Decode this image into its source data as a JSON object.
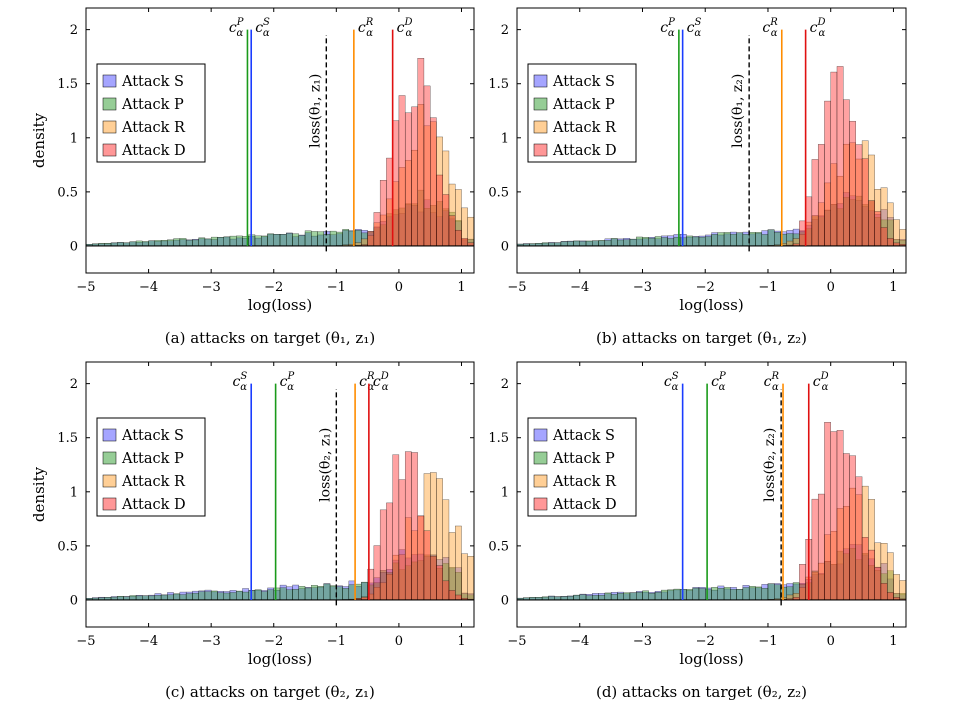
{
  "chart_data": [
    {
      "type": "bar",
      "caption": "(a) attacks on target (θ₁, z₁)",
      "xlabel": "log(loss)",
      "ylabel": "density",
      "xlim": [
        -5,
        1.2
      ],
      "ylim": [
        -0.25,
        2.2
      ],
      "xticks": [
        -5,
        -4,
        -3,
        -2,
        -1,
        0,
        1
      ],
      "yticks": [
        0,
        0.5,
        1,
        1.5,
        2
      ],
      "tick_labels_x": [
        "−5",
        "−4",
        "−3",
        "−2",
        "−1",
        "0",
        "1"
      ],
      "tick_labels_y": [
        "0",
        "0.5",
        "1",
        "1.5",
        "2"
      ],
      "legend": {
        "position": "top-left",
        "entries": [
          "Attack S",
          "Attack P",
          "Attack R",
          "Attack D"
        ]
      },
      "series": [
        {
          "name": "Attack S",
          "color": "#4c4cff",
          "peak": 0.38,
          "kind": "S"
        },
        {
          "name": "Attack P",
          "color": "#2e9b2e",
          "peak": 0.42,
          "kind": "P"
        },
        {
          "name": "Attack R",
          "color": "#ff9f2e",
          "peak": 1.15,
          "kind": "R"
        },
        {
          "name": "Attack D",
          "color": "#ff3030",
          "peak": 1.6,
          "kind": "D"
        }
      ],
      "thresholds": [
        {
          "label": "c",
          "sup": "P",
          "sub": "α",
          "x": -2.42,
          "color": "#1a9a1a",
          "label_side": "left"
        },
        {
          "label": "c",
          "sup": "S",
          "sub": "α",
          "x": -2.36,
          "color": "#1a3cff",
          "label_side": "right"
        },
        {
          "label": "c",
          "sup": "R",
          "sub": "α",
          "x": -0.72,
          "color": "#ff8c00",
          "label_side": "right"
        },
        {
          "label": "c",
          "sup": "D",
          "sub": "α",
          "x": -0.1,
          "color": "#e01010",
          "label_side": "right"
        }
      ],
      "target_loss": {
        "x": -1.16,
        "label": "loss(θ₁, z₁)"
      },
      "dist": {
        "centerD": 0.25,
        "centerR": 0.45,
        "tailSP": -2.2
      }
    },
    {
      "type": "bar",
      "caption": "(b) attacks on target (θ₁, z₂)",
      "xlabel": "log(loss)",
      "ylabel": "",
      "xlim": [
        -5,
        1.2
      ],
      "ylim": [
        -0.25,
        2.2
      ],
      "xticks": [
        -5,
        -4,
        -3,
        -2,
        -1,
        0,
        1
      ],
      "yticks": [
        0,
        0.5,
        1,
        1.5,
        2
      ],
      "tick_labels_x": [
        "−5",
        "−4",
        "−3",
        "−2",
        "−1",
        "0",
        "1"
      ],
      "tick_labels_y": [
        "0",
        "0.5",
        "1",
        "1.5",
        "2"
      ],
      "legend": {
        "position": "top-left",
        "entries": [
          "Attack S",
          "Attack P",
          "Attack R",
          "Attack D"
        ]
      },
      "series": [
        {
          "name": "Attack S",
          "color": "#4c4cff",
          "peak": 0.42,
          "kind": "S"
        },
        {
          "name": "Attack P",
          "color": "#2e9b2e",
          "peak": 0.4,
          "kind": "P"
        },
        {
          "name": "Attack R",
          "color": "#ff9f2e",
          "peak": 0.95,
          "kind": "R"
        },
        {
          "name": "Attack D",
          "color": "#ff3030",
          "peak": 1.42,
          "kind": "D"
        }
      ],
      "thresholds": [
        {
          "label": "c",
          "sup": "P",
          "sub": "α",
          "x": -2.42,
          "color": "#1a9a1a",
          "label_side": "left"
        },
        {
          "label": "c",
          "sup": "S",
          "sub": "α",
          "x": -2.36,
          "color": "#1a3cff",
          "label_side": "right"
        },
        {
          "label": "c",
          "sup": "R",
          "sub": "α",
          "x": -0.78,
          "color": "#ff8c00",
          "label_side": "left"
        },
        {
          "label": "c",
          "sup": "D",
          "sub": "α",
          "x": -0.4,
          "color": "#e01010",
          "label_side": "right"
        }
      ],
      "target_loss": {
        "x": -1.3,
        "label": "loss(θ₁, z₂)"
      },
      "dist": {
        "centerD": 0.15,
        "centerR": 0.4,
        "tailSP": -2.2
      }
    },
    {
      "type": "bar",
      "caption": "(c) attacks on target (θ₂, z₁)",
      "xlabel": "log(loss)",
      "ylabel": "density",
      "xlim": [
        -5,
        1.2
      ],
      "ylim": [
        -0.25,
        2.2
      ],
      "xticks": [
        -5,
        -4,
        -3,
        -2,
        -1,
        0,
        1
      ],
      "yticks": [
        0,
        0.5,
        1,
        1.5,
        2
      ],
      "tick_labels_x": [
        "−5",
        "−4",
        "−3",
        "−2",
        "−1",
        "0",
        "1"
      ],
      "tick_labels_y": [
        "0",
        "0.5",
        "1",
        "1.5",
        "2"
      ],
      "legend": {
        "position": "top-left",
        "entries": [
          "Attack S",
          "Attack P",
          "Attack R",
          "Attack D"
        ]
      },
      "series": [
        {
          "name": "Attack S",
          "color": "#4c4cff",
          "peak": 0.45,
          "kind": "S"
        },
        {
          "name": "Attack P",
          "color": "#2e9b2e",
          "peak": 0.4,
          "kind": "P"
        },
        {
          "name": "Attack R",
          "color": "#ff9f2e",
          "peak": 1.02,
          "kind": "R"
        },
        {
          "name": "Attack D",
          "color": "#ff3030",
          "peak": 1.27,
          "kind": "D"
        }
      ],
      "thresholds": [
        {
          "label": "c",
          "sup": "S",
          "sub": "α",
          "x": -2.36,
          "color": "#1a3cff",
          "label_side": "left"
        },
        {
          "label": "c",
          "sup": "P",
          "sub": "α",
          "x": -1.97,
          "color": "#1a9a1a",
          "label_side": "right"
        },
        {
          "label": "c",
          "sup": "R",
          "sub": "α",
          "x": -0.7,
          "color": "#ff8c00",
          "label_side": "right"
        },
        {
          "label": "c",
          "sup": "D",
          "sub": "α",
          "x": -0.48,
          "color": "#e01010",
          "label_side": "right"
        }
      ],
      "target_loss": {
        "x": -1.0,
        "label": "loss(θ₂, z₁)"
      },
      "dist": {
        "centerD": 0.1,
        "centerR": 0.55,
        "tailSP": -2.0
      }
    },
    {
      "type": "bar",
      "caption": "(d) attacks on target (θ₂, z₂)",
      "xlabel": "log(loss)",
      "ylabel": "",
      "xlim": [
        -5,
        1.2
      ],
      "ylim": [
        -0.25,
        2.2
      ],
      "xticks": [
        -5,
        -4,
        -3,
        -2,
        -1,
        0,
        1
      ],
      "yticks": [
        0,
        0.5,
        1,
        1.5,
        2
      ],
      "tick_labels_x": [
        "−5",
        "−4",
        "−3",
        "−2",
        "−1",
        "0",
        "1"
      ],
      "tick_labels_y": [
        "0",
        "0.5",
        "1",
        "1.5",
        "2"
      ],
      "legend": {
        "position": "top-left",
        "entries": [
          "Attack S",
          "Attack P",
          "Attack R",
          "Attack D"
        ]
      },
      "series": [
        {
          "name": "Attack S",
          "color": "#4c4cff",
          "peak": 0.42,
          "kind": "S"
        },
        {
          "name": "Attack P",
          "color": "#2e9b2e",
          "peak": 0.4,
          "kind": "P"
        },
        {
          "name": "Attack R",
          "color": "#ff9f2e",
          "peak": 0.92,
          "kind": "R"
        },
        {
          "name": "Attack D",
          "color": "#ff3030",
          "peak": 1.55,
          "kind": "D"
        }
      ],
      "thresholds": [
        {
          "label": "c",
          "sup": "S",
          "sub": "α",
          "x": -2.36,
          "color": "#1a3cff",
          "label_side": "left"
        },
        {
          "label": "c",
          "sup": "P",
          "sub": "α",
          "x": -1.97,
          "color": "#1a9a1a",
          "label_side": "right"
        },
        {
          "label": "c",
          "sup": "R",
          "sub": "α",
          "x": -0.76,
          "color": "#ff8c00",
          "label_side": "left"
        },
        {
          "label": "c",
          "sup": "D",
          "sub": "α",
          "x": -0.35,
          "color": "#e01010",
          "label_side": "right"
        }
      ],
      "target_loss": {
        "x": -0.79,
        "label": "loss(θ₂, z₂)"
      },
      "dist": {
        "centerD": 0.12,
        "centerR": 0.4,
        "tailSP": -2.0
      }
    }
  ]
}
